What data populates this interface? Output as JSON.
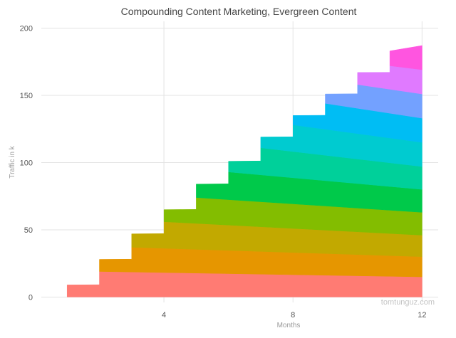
{
  "chart_data": {
    "type": "area",
    "title": "Compounding Content Marketing, Evergreen Content",
    "xlabel": "Months",
    "ylabel": "Traffic in k",
    "xlim": [
      0.2,
      12.5
    ],
    "ylim": [
      -4,
      205
    ],
    "x_ticks": [
      4,
      8,
      12
    ],
    "y_ticks": [
      0,
      50,
      100,
      150,
      200
    ],
    "grid": true,
    "stacked": true,
    "watermark": "tomtunguz.com",
    "layers": [
      {
        "start": 1,
        "color": "#ff7b73",
        "lower_start": 0,
        "upper_start": 9,
        "upper_jump": 19,
        "upper_end": 15
      },
      {
        "start": 2,
        "color": "#e69600",
        "lower_start": 19,
        "upper_start": 28,
        "upper_jump": 37,
        "upper_end": 30
      },
      {
        "start": 3,
        "color": "#c2a900",
        "lower_start": 37,
        "upper_start": 47,
        "upper_jump": 56,
        "upper_end": 46
      },
      {
        "start": 4,
        "color": "#83bd00",
        "lower_start": 56,
        "upper_start": 65,
        "upper_jump": 74,
        "upper_end": 63
      },
      {
        "start": 5,
        "color": "#00c94a",
        "lower_start": 74,
        "upper_start": 84,
        "upper_jump": 93,
        "upper_end": 80
      },
      {
        "start": 6,
        "color": "#00d09a",
        "lower_start": 93,
        "upper_start": 101,
        "upper_jump": 111,
        "upper_end": 97
      },
      {
        "start": 7,
        "color": "#00cbd0",
        "lower_start": 111,
        "upper_start": 119,
        "upper_jump": 128,
        "upper_end": 115
      },
      {
        "start": 8,
        "color": "#00bdf4",
        "lower_start": 128,
        "upper_start": 135,
        "upper_jump": 144,
        "upper_end": 133
      },
      {
        "start": 9,
        "color": "#73a1ff",
        "lower_start": 144,
        "upper_start": 151,
        "upper_jump": 158,
        "upper_end": 151
      },
      {
        "start": 10,
        "color": "#e07aff",
        "lower_start": 158,
        "upper_start": 167,
        "upper_jump": 172,
        "upper_end": 169
      },
      {
        "start": 11,
        "color": "#ff55e0",
        "lower_start": 172,
        "upper_start": 183,
        "upper_jump": 183,
        "upper_end": 187
      }
    ]
  }
}
